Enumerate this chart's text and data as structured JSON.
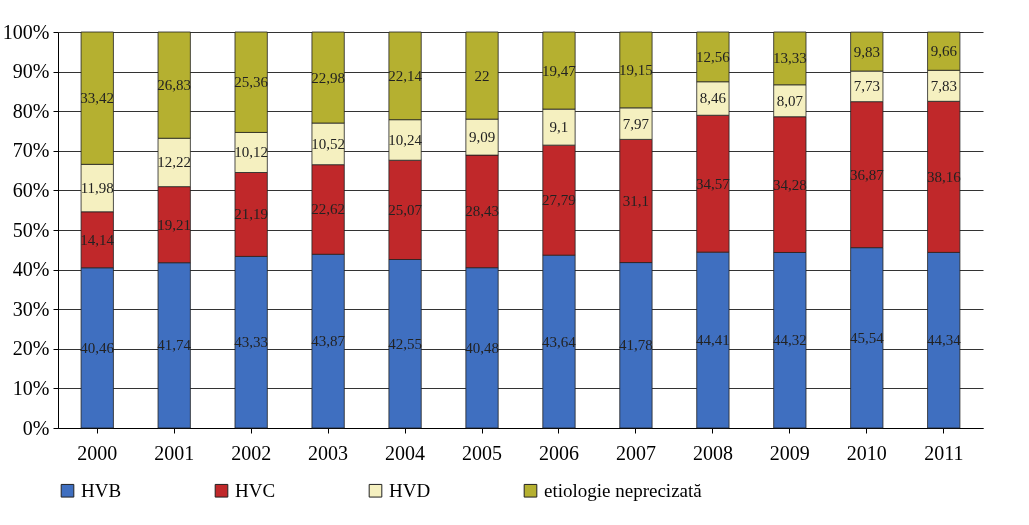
{
  "chart_data": {
    "type": "bar",
    "stacked": true,
    "categories": [
      "2000",
      "2001",
      "2002",
      "2003",
      "2004",
      "2005",
      "2006",
      "2007",
      "2008",
      "2009",
      "2010",
      "2011"
    ],
    "series": [
      {
        "name": "HVB",
        "color": "#3f6fc0",
        "values": [
          40.46,
          41.74,
          43.33,
          43.87,
          42.55,
          40.48,
          43.64,
          41.78,
          44.41,
          44.32,
          45.54,
          44.34
        ],
        "value_labels": [
          "40,46",
          "41,74",
          "43,33",
          "43,87",
          "42,55",
          "40,48",
          "43,64",
          "41,78",
          "44,41",
          "44,32",
          "45,54",
          "44,34"
        ]
      },
      {
        "name": "HVC",
        "color": "#c0282a",
        "values": [
          14.14,
          19.21,
          21.19,
          22.62,
          25.07,
          28.43,
          27.79,
          31.1,
          34.57,
          34.28,
          36.87,
          38.16
        ],
        "value_labels": [
          "14,14",
          "19,21",
          "21,19",
          "22,62",
          "25,07",
          "28,43",
          "27,79",
          "31,1",
          "34,57",
          "34,28",
          "36,87",
          "38,16"
        ]
      },
      {
        "name": "HVD",
        "color": "#f5f0c0",
        "values": [
          11.98,
          12.22,
          10.12,
          10.52,
          10.24,
          9.09,
          9.1,
          7.97,
          8.46,
          8.07,
          7.73,
          7.83
        ],
        "value_labels": [
          "11,98",
          "12,22",
          "10,12",
          "10,52",
          "10,24",
          "9,09",
          "9,1",
          "7,97",
          "8,46",
          "8,07",
          "7,73",
          "7,83"
        ]
      },
      {
        "name": "etiologie neprecizată",
        "color": "#b5b030",
        "values": [
          33.42,
          26.83,
          25.36,
          22.98,
          22.14,
          22,
          19.47,
          19.15,
          12.56,
          13.33,
          9.83,
          9.66
        ],
        "value_labels": [
          "33,42",
          "26,83",
          "25,36",
          "22,98",
          "22,14",
          "22",
          "19,47",
          "19,15",
          "12,56",
          "13,33",
          "9,83",
          "9,66"
        ]
      }
    ],
    "ylim": [
      0,
      100
    ],
    "yticks": [
      {
        "value": 0,
        "label": "0%"
      },
      {
        "value": 10,
        "label": "10%"
      },
      {
        "value": 20,
        "label": "20%"
      },
      {
        "value": 30,
        "label": "30%"
      },
      {
        "value": 40,
        "label": "40%"
      },
      {
        "value": 50,
        "label": "50%"
      },
      {
        "value": 60,
        "label": "60%"
      },
      {
        "value": 70,
        "label": "70%"
      },
      {
        "value": 80,
        "label": "80%"
      },
      {
        "value": 90,
        "label": "90%"
      },
      {
        "value": 100,
        "label": "100%"
      }
    ],
    "grid": "y",
    "legend": "bottom"
  }
}
